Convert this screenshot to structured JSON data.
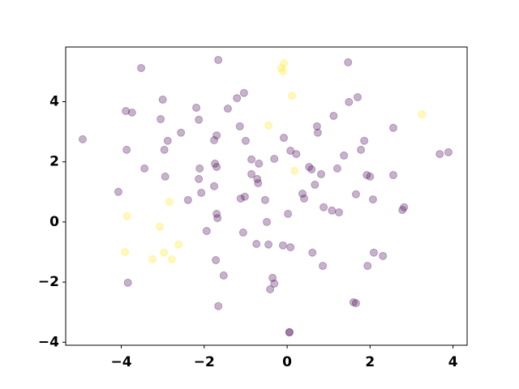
{
  "chart_data": {
    "type": "scatter",
    "xlim": [
      -5.34,
      4.34
    ],
    "ylim": [
      -4.1,
      5.82
    ],
    "xticks": [
      {
        "value": -4,
        "label": "−4"
      },
      {
        "value": -2,
        "label": "−2"
      },
      0,
      2,
      4
    ],
    "yticks": [
      {
        "value": -4,
        "label": "−4"
      },
      {
        "value": -2,
        "label": "−2"
      },
      0,
      2,
      4
    ],
    "grid": false,
    "series": [
      {
        "color": "#440154",
        "x": [
          -4.93,
          -3.52,
          -1.66,
          1.47,
          -3.89,
          -3.74,
          -3.0,
          -3.05,
          -2.19,
          -2.13,
          -2.56,
          -1.43,
          -1.21,
          -1.04,
          -1.7,
          -1.76,
          -1.14,
          -1.0,
          -3.87,
          -2.88,
          -2.96,
          -3.44,
          -2.94,
          -2.11,
          -2.13,
          -1.74,
          -1.7,
          -0.86,
          -0.68,
          -0.86,
          -0.72,
          -0.7,
          -1.76,
          -2.07,
          -2.39,
          -4.07,
          -1.12,
          -1.02,
          -0.53,
          -0.08,
          0.08,
          0.22,
          -0.31,
          1.12,
          0.72,
          0.74,
          1.49,
          1.7,
          2.56,
          1.86,
          1.78,
          1.37,
          0.53,
          0.59,
          0.82,
          1.21,
          1.92,
          2.0,
          2.56,
          3.68,
          3.89,
          0.37,
          0.41,
          0.67,
          0.88,
          1.08,
          1.25,
          1.66,
          2.07,
          2.78,
          2.82,
          -1.7,
          -1.68,
          -0.49,
          0.02,
          -1.94,
          -1.06,
          -0.74,
          -0.45,
          -0.1,
          0.08,
          0.61,
          2.09,
          2.31,
          1.94,
          0.86,
          -1.72,
          -1.53,
          -3.84,
          -0.35,
          -0.31,
          -0.41,
          1.6,
          1.66,
          -1.66,
          0.06,
          0.05
        ],
        "values": [
          2.75,
          5.12,
          5.39,
          5.31,
          3.69,
          3.64,
          4.07,
          3.42,
          3.8,
          3.4,
          2.97,
          3.77,
          4.12,
          4.29,
          2.88,
          2.72,
          3.18,
          2.7,
          2.4,
          2.7,
          2.4,
          1.78,
          1.51,
          1.78,
          1.43,
          1.94,
          1.83,
          2.08,
          1.94,
          1.59,
          1.43,
          1.29,
          1.19,
          0.97,
          0.73,
          1.0,
          0.78,
          0.84,
          0.73,
          2.8,
          2.37,
          2.26,
          2.1,
          3.53,
          3.18,
          2.97,
          3.99,
          4.15,
          3.13,
          2.7,
          2.4,
          2.21,
          1.83,
          1.75,
          1.59,
          1.78,
          1.56,
          1.51,
          1.56,
          2.26,
          2.32,
          0.94,
          0.78,
          1.24,
          0.49,
          0.38,
          0.32,
          0.92,
          0.75,
          0.4,
          0.49,
          0.27,
          0.13,
          0.0,
          0.27,
          -0.3,
          -0.35,
          -0.73,
          -0.75,
          -0.78,
          -0.84,
          -1.02,
          -1.02,
          -1.13,
          -1.46,
          -1.46,
          -1.27,
          -1.78,
          -2.02,
          -1.86,
          -2.05,
          -2.24,
          -2.67,
          -2.7,
          -2.8,
          -3.67,
          -3.67
        ]
      },
      {
        "color": "#fde725",
        "x": [
          -0.08,
          -0.14,
          -0.1,
          0.12,
          -0.45,
          0.18,
          3.25,
          -2.84,
          -3.86,
          -3.07,
          -2.62,
          -3.91,
          -2.97,
          -3.25,
          -2.78
        ],
        "values": [
          5.28,
          5.12,
          5.01,
          4.2,
          3.21,
          1.7,
          3.58,
          0.67,
          0.19,
          -0.16,
          -0.75,
          -1.0,
          -1.02,
          -1.24,
          -1.24
        ]
      }
    ]
  }
}
